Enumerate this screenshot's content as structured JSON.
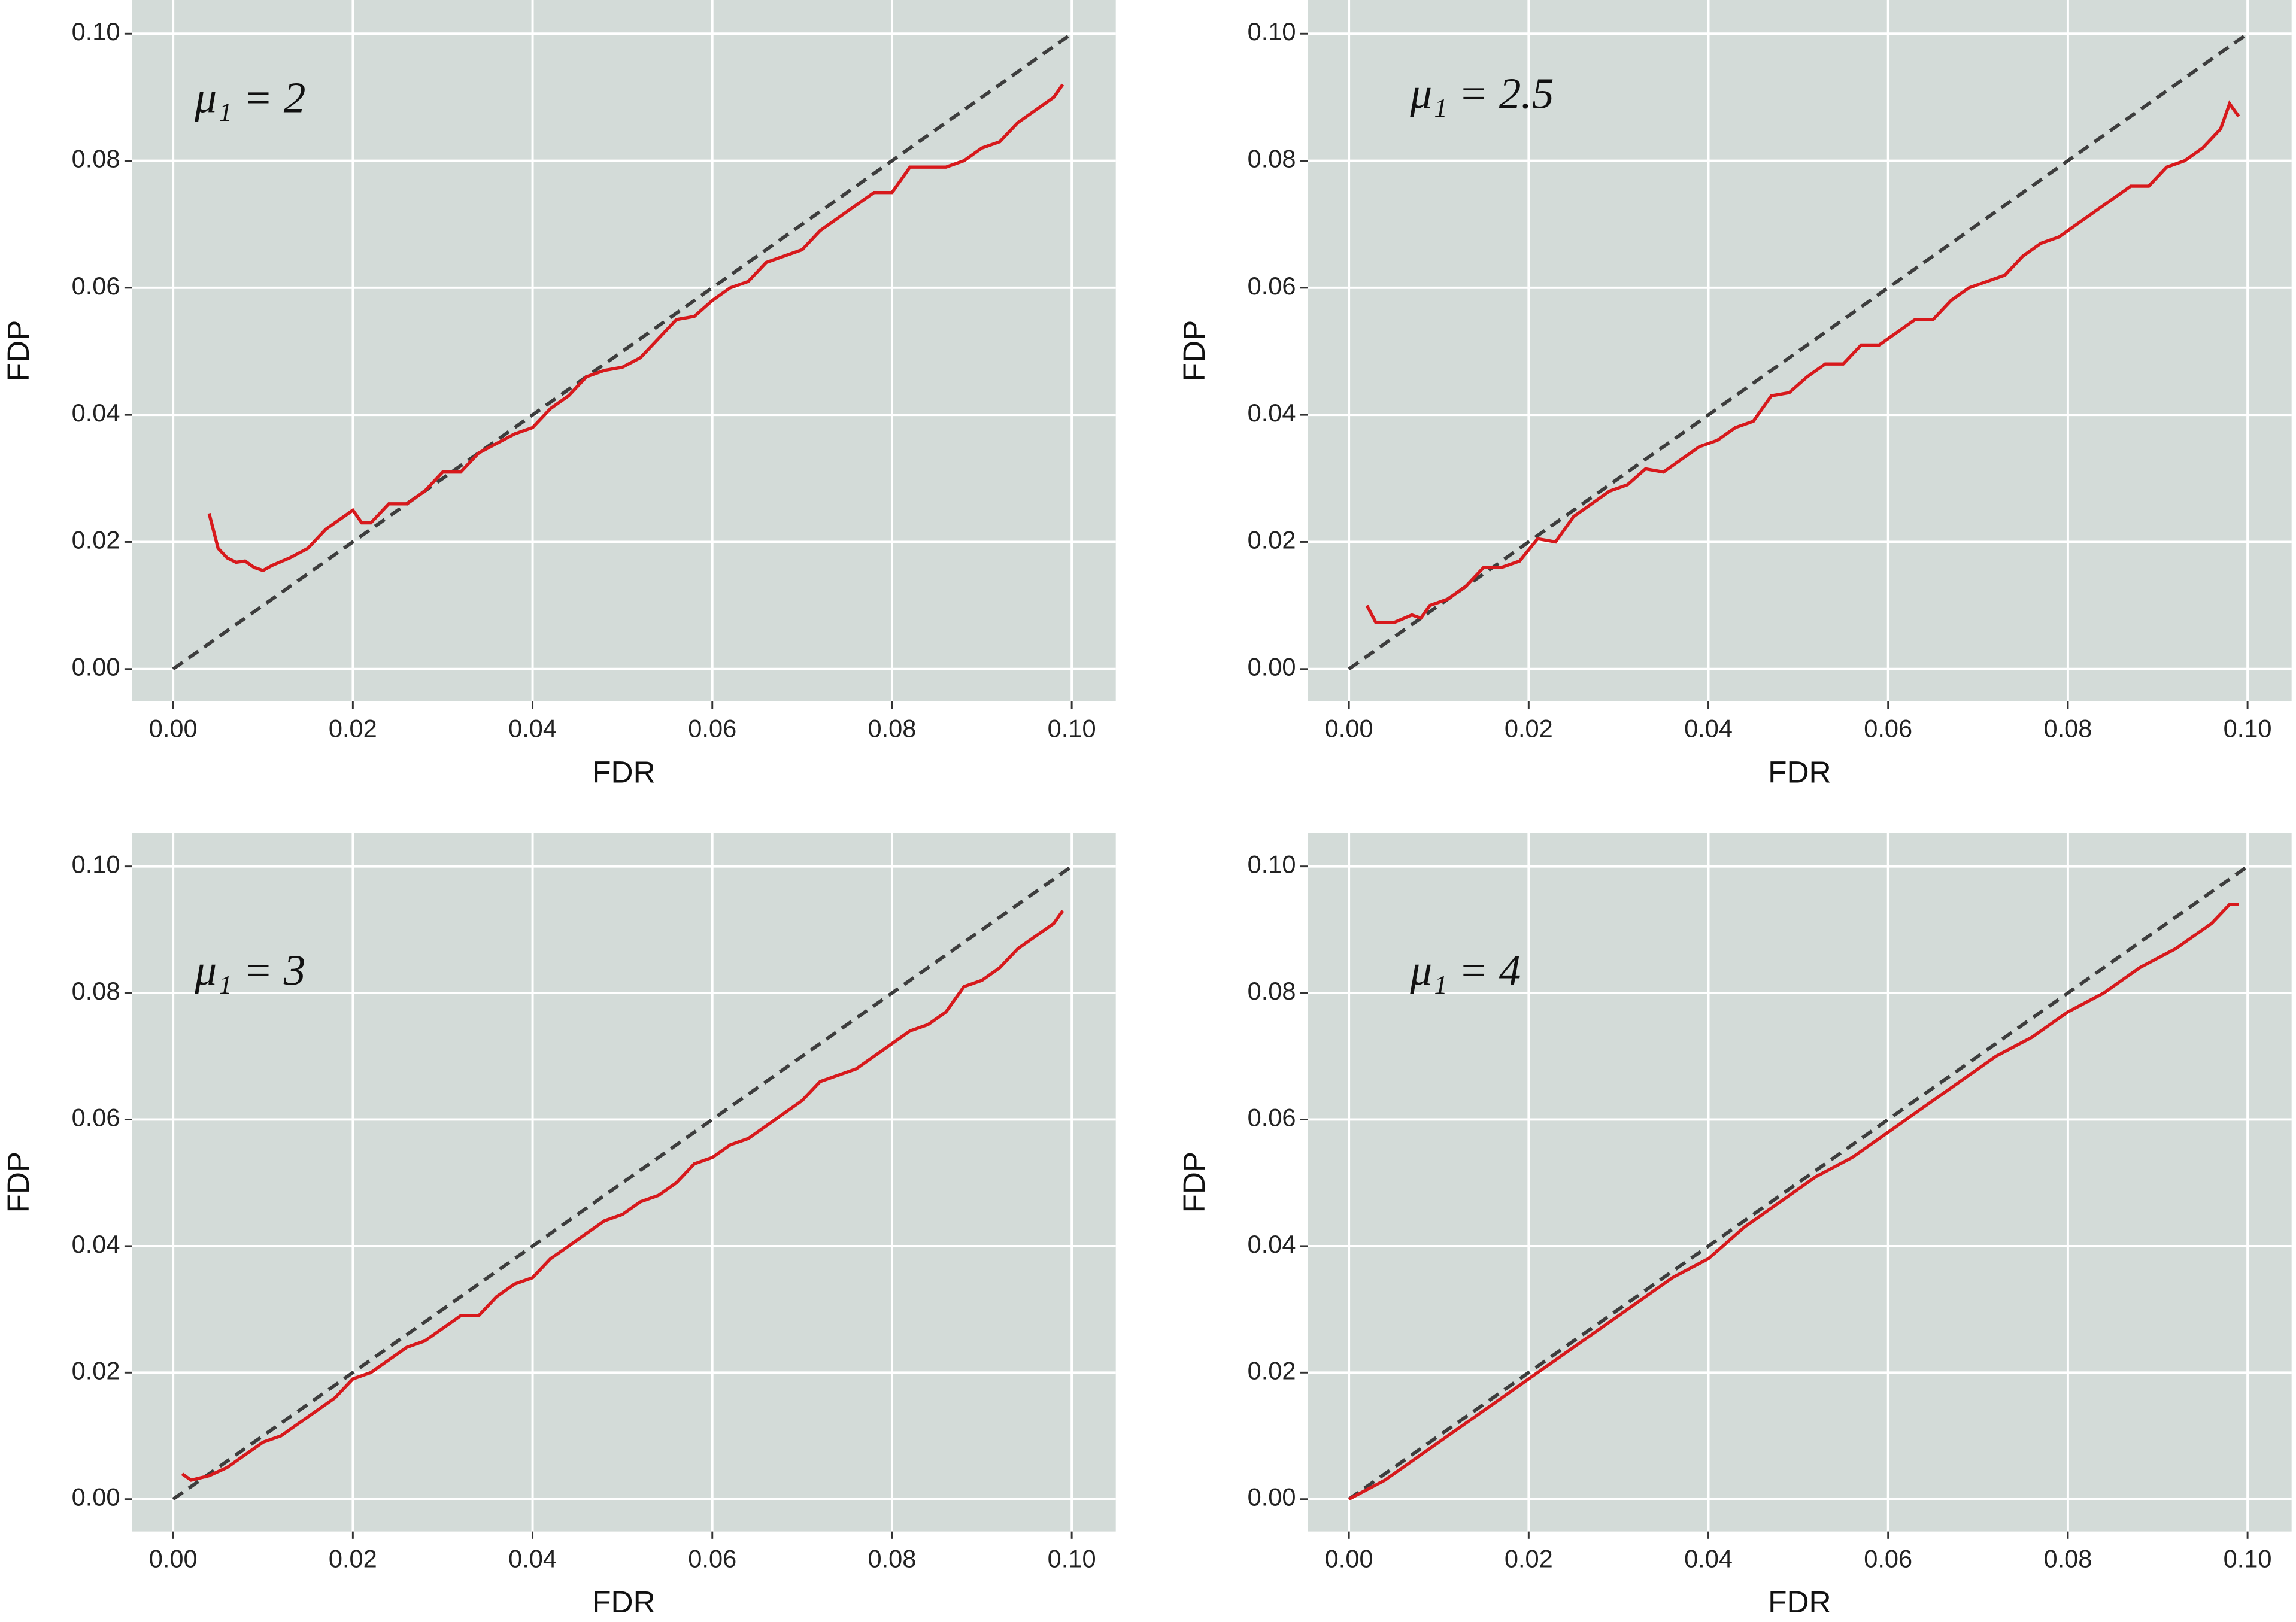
{
  "chart_data": [
    {
      "type": "line",
      "annotation": "μ₁ = 2",
      "xlabel": "FDR",
      "ylabel": "FDP",
      "xlim": [
        -0.0046,
        0.1049
      ],
      "ylim": [
        -0.0051,
        0.1053
      ],
      "xticks": [
        {
          "value": 0,
          "label": "0.00"
        },
        0.02,
        0.04,
        0.06,
        0.08,
        {
          "value": 0.1,
          "label": "0.10"
        }
      ],
      "yticks": [
        {
          "value": 0,
          "label": "0.00"
        },
        0.02,
        0.04,
        0.06,
        0.08,
        {
          "value": 0.1,
          "label": "0.10"
        }
      ],
      "grid": true,
      "series": [
        {
          "color": "#3d3d3d",
          "dash": true,
          "x": [
            0,
            0.1
          ],
          "values": [
            0,
            0.1
          ]
        },
        {
          "color": "#d7191c",
          "x": [
            0.004,
            0.005,
            0.006,
            0.007,
            0.008,
            0.009,
            0.01,
            0.011,
            0.013,
            0.015,
            0.017,
            0.019,
            0.02,
            0.021,
            0.022,
            0.024,
            0.026,
            0.028,
            0.03,
            0.032,
            0.034,
            0.036,
            0.038,
            0.04,
            0.042,
            0.044,
            0.046,
            0.048,
            0.05,
            0.052,
            0.054,
            0.056,
            0.058,
            0.06,
            0.062,
            0.064,
            0.066,
            0.068,
            0.07,
            0.072,
            0.074,
            0.076,
            0.078,
            0.08,
            0.082,
            0.084,
            0.086,
            0.088,
            0.09,
            0.092,
            0.094,
            0.096,
            0.098,
            0.099
          ],
          "values": [
            0.0245,
            0.019,
            0.0175,
            0.0168,
            0.017,
            0.016,
            0.0155,
            0.0163,
            0.0175,
            0.019,
            0.022,
            0.024,
            0.025,
            0.023,
            0.023,
            0.026,
            0.026,
            0.028,
            0.031,
            0.031,
            0.034,
            0.0355,
            0.037,
            0.038,
            0.041,
            0.043,
            0.046,
            0.047,
            0.0475,
            0.049,
            0.052,
            0.055,
            0.0555,
            0.058,
            0.06,
            0.061,
            0.064,
            0.065,
            0.066,
            0.069,
            0.071,
            0.073,
            0.075,
            0.075,
            0.079,
            0.079,
            0.079,
            0.08,
            0.082,
            0.083,
            0.086,
            0.088,
            0.09,
            0.092
          ]
        }
      ]
    },
    {
      "type": "line",
      "annotation": "μ₁ = 2.5",
      "xlabel": "FDR",
      "ylabel": "FDP",
      "xlim": [
        -0.0046,
        0.1049
      ],
      "ylim": [
        -0.0051,
        0.1053
      ],
      "xticks": [
        {
          "value": 0,
          "label": "0.00"
        },
        0.02,
        0.04,
        0.06,
        0.08,
        {
          "value": 0.1,
          "label": "0.10"
        }
      ],
      "yticks": [
        {
          "value": 0,
          "label": "0.00"
        },
        0.02,
        0.04,
        0.06,
        0.08,
        {
          "value": 0.1,
          "label": "0.10"
        }
      ],
      "grid": true,
      "series": [
        {
          "color": "#3d3d3d",
          "dash": true,
          "x": [
            0,
            0.1
          ],
          "values": [
            0,
            0.1
          ]
        },
        {
          "color": "#d7191c",
          "x": [
            0.002,
            0.003,
            0.005,
            0.007,
            0.008,
            0.009,
            0.011,
            0.013,
            0.015,
            0.017,
            0.019,
            0.021,
            0.023,
            0.025,
            0.027,
            0.029,
            0.031,
            0.033,
            0.035,
            0.037,
            0.039,
            0.041,
            0.043,
            0.045,
            0.047,
            0.049,
            0.051,
            0.053,
            0.055,
            0.057,
            0.059,
            0.061,
            0.063,
            0.065,
            0.067,
            0.069,
            0.071,
            0.073,
            0.075,
            0.077,
            0.079,
            0.081,
            0.083,
            0.085,
            0.087,
            0.089,
            0.091,
            0.093,
            0.095,
            0.097,
            0.098,
            0.099
          ],
          "values": [
            0.01,
            0.0073,
            0.0073,
            0.0085,
            0.008,
            0.01,
            0.011,
            0.013,
            0.016,
            0.016,
            0.017,
            0.0205,
            0.02,
            0.024,
            0.026,
            0.028,
            0.029,
            0.0315,
            0.031,
            0.033,
            0.035,
            0.036,
            0.038,
            0.039,
            0.043,
            0.0435,
            0.046,
            0.048,
            0.048,
            0.051,
            0.051,
            0.053,
            0.055,
            0.055,
            0.058,
            0.06,
            0.061,
            0.062,
            0.065,
            0.067,
            0.068,
            0.07,
            0.072,
            0.074,
            0.076,
            0.076,
            0.079,
            0.08,
            0.082,
            0.085,
            0.089,
            0.087
          ]
        }
      ]
    },
    {
      "type": "line",
      "annotation": "μ₁ = 3",
      "xlabel": "FDR",
      "ylabel": "FDP",
      "xlim": [
        -0.0046,
        0.1049
      ],
      "ylim": [
        -0.0051,
        0.1053
      ],
      "xticks": [
        {
          "value": 0,
          "label": "0.00"
        },
        0.02,
        0.04,
        0.06,
        0.08,
        {
          "value": 0.1,
          "label": "0.10"
        }
      ],
      "yticks": [
        {
          "value": 0,
          "label": "0.00"
        },
        0.02,
        0.04,
        0.06,
        0.08,
        {
          "value": 0.1,
          "label": "0.10"
        }
      ],
      "grid": true,
      "series": [
        {
          "color": "#3d3d3d",
          "dash": true,
          "x": [
            0,
            0.1
          ],
          "values": [
            0,
            0.1
          ]
        },
        {
          "color": "#d7191c",
          "x": [
            0.001,
            0.002,
            0.004,
            0.006,
            0.008,
            0.01,
            0.012,
            0.014,
            0.016,
            0.018,
            0.02,
            0.022,
            0.024,
            0.026,
            0.028,
            0.03,
            0.032,
            0.034,
            0.036,
            0.038,
            0.04,
            0.042,
            0.044,
            0.046,
            0.048,
            0.05,
            0.052,
            0.054,
            0.056,
            0.058,
            0.06,
            0.062,
            0.064,
            0.066,
            0.068,
            0.07,
            0.072,
            0.074,
            0.076,
            0.078,
            0.08,
            0.082,
            0.084,
            0.086,
            0.088,
            0.09,
            0.092,
            0.094,
            0.096,
            0.098,
            0.099
          ],
          "values": [
            0.004,
            0.003,
            0.0037,
            0.005,
            0.007,
            0.009,
            0.01,
            0.012,
            0.014,
            0.016,
            0.019,
            0.02,
            0.022,
            0.024,
            0.025,
            0.027,
            0.029,
            0.029,
            0.032,
            0.034,
            0.035,
            0.038,
            0.04,
            0.042,
            0.044,
            0.045,
            0.047,
            0.048,
            0.05,
            0.053,
            0.054,
            0.056,
            0.057,
            0.059,
            0.061,
            0.063,
            0.066,
            0.067,
            0.068,
            0.07,
            0.072,
            0.074,
            0.075,
            0.077,
            0.081,
            0.082,
            0.084,
            0.087,
            0.089,
            0.091,
            0.093
          ]
        }
      ]
    },
    {
      "type": "line",
      "annotation": "μ₁ = 4",
      "xlabel": "FDR",
      "ylabel": "FDP",
      "xlim": [
        -0.0046,
        0.1049
      ],
      "ylim": [
        -0.0051,
        0.1053
      ],
      "xticks": [
        {
          "value": 0,
          "label": "0.00"
        },
        0.02,
        0.04,
        0.06,
        0.08,
        {
          "value": 0.1,
          "label": "0.10"
        }
      ],
      "yticks": [
        {
          "value": 0,
          "label": "0.00"
        },
        0.02,
        0.04,
        0.06,
        0.08,
        {
          "value": 0.1,
          "label": "0.10"
        }
      ],
      "grid": true,
      "series": [
        {
          "color": "#3d3d3d",
          "dash": true,
          "x": [
            0,
            0.1
          ],
          "values": [
            0,
            0.1
          ]
        },
        {
          "color": "#d7191c",
          "x": [
            0,
            0.004,
            0.008,
            0.012,
            0.016,
            0.02,
            0.024,
            0.028,
            0.032,
            0.036,
            0.04,
            0.044,
            0.048,
            0.052,
            0.056,
            0.06,
            0.064,
            0.068,
            0.072,
            0.076,
            0.08,
            0.084,
            0.088,
            0.092,
            0.096,
            0.098,
            0.099
          ],
          "values": [
            0,
            0.003,
            0.007,
            0.011,
            0.015,
            0.019,
            0.023,
            0.027,
            0.031,
            0.035,
            0.038,
            0.043,
            0.047,
            0.051,
            0.054,
            0.058,
            0.062,
            0.066,
            0.07,
            0.073,
            0.077,
            0.08,
            0.084,
            0.087,
            0.091,
            0.094,
            0.094
          ]
        }
      ]
    }
  ]
}
